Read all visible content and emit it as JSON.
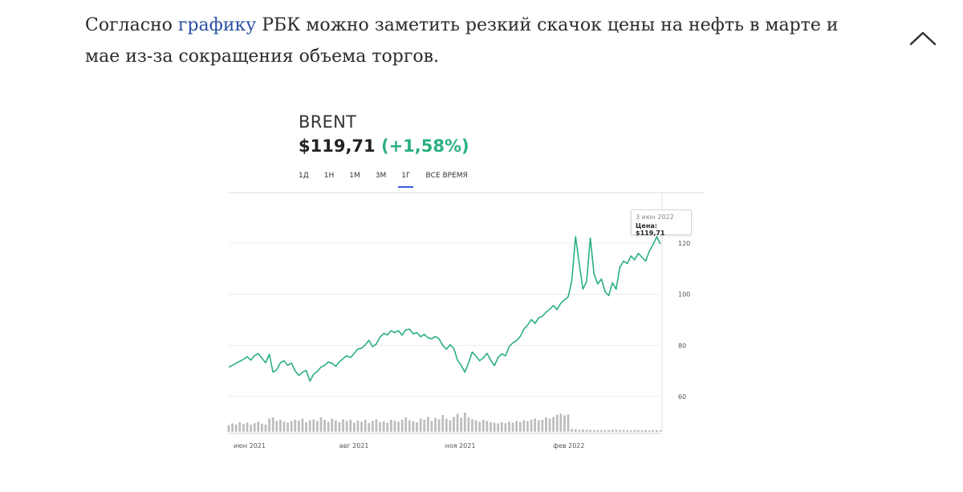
{
  "article": {
    "text_before_link": "Согласно ",
    "link_text": "графику",
    "text_after_link": " РБК можно заметить резкий скачок цены на нефть в марте и мае из-за сокращения объема торгов."
  },
  "collapse_icon": "chevron-up-icon",
  "widget": {
    "ticker": "BRENT",
    "price": "$119,71",
    "change": "(+1,58%)",
    "change_color": "#2bb07f",
    "periods": [
      "1Д",
      "1Н",
      "1М",
      "3М",
      "1Г",
      "ВСЕ ВРЕМЯ"
    ],
    "active_period": "1Г",
    "tooltip": {
      "date": "3 июн 2022",
      "label": "Цена:",
      "value": "$119,71"
    }
  },
  "chart_data": {
    "type": "line",
    "title": "",
    "xlabel": "",
    "ylabel": "",
    "line_color": "#2bb07f",
    "volume_color": "#bdbdbd",
    "ylim": [
      55,
      130
    ],
    "y_ticks": [
      60,
      80,
      100,
      120
    ],
    "x_ticks": [
      "июн 2021",
      "авг 2021",
      "ноя 2021",
      "фев 2022"
    ],
    "grid": true,
    "series": [
      {
        "values": [
          71.5,
          72.2,
          73.0,
          73.8,
          74.5,
          75.6,
          74.2,
          76.0,
          76.8,
          75.0,
          73.2,
          76.5,
          69.5,
          70.5,
          73.2,
          74.0,
          72.2,
          73.1,
          70.0,
          68.2,
          69.5,
          70.2,
          66.0,
          68.7,
          69.8,
          71.5,
          72.2,
          73.5,
          73.0,
          71.8,
          73.6,
          74.8,
          76.0,
          75.2,
          76.8,
          78.6,
          78.9,
          80.2,
          82.0,
          79.5,
          80.5,
          83.2,
          84.7,
          84.1,
          85.8,
          85.0,
          85.8,
          84.0,
          86.1,
          86.4,
          84.5,
          85.0,
          83.4,
          84.3,
          83.0,
          82.6,
          83.5,
          82.6,
          80.0,
          78.5,
          80.3,
          78.8,
          74.2,
          72.2,
          69.5,
          73.2,
          77.4,
          75.8,
          74.0,
          75.1,
          76.9,
          74.2,
          72.1,
          75.2,
          76.7,
          75.9,
          79.5,
          81.0,
          81.9,
          83.5,
          86.4,
          88.0,
          90.1,
          88.6,
          90.8,
          91.4,
          93.0,
          94.2,
          95.6,
          94.0,
          96.5,
          97.8,
          99.0,
          105.5,
          122.5,
          112.0,
          102.0,
          105.0,
          122.0,
          108.0,
          104.0,
          106.0,
          101.0,
          99.5,
          104.5,
          102.0,
          110.5,
          113.0,
          112.0,
          115.0,
          113.5,
          116.0,
          114.5,
          113.0,
          117.0,
          119.5,
          122.5,
          119.7
        ],
        "volume": [
          0.28,
          0.35,
          0.3,
          0.4,
          0.33,
          0.38,
          0.3,
          0.36,
          0.42,
          0.34,
          0.3,
          0.55,
          0.6,
          0.45,
          0.5,
          0.42,
          0.38,
          0.44,
          0.5,
          0.47,
          0.55,
          0.4,
          0.48,
          0.52,
          0.45,
          0.6,
          0.5,
          0.42,
          0.55,
          0.48,
          0.4,
          0.52,
          0.45,
          0.5,
          0.38,
          0.47,
          0.42,
          0.5,
          0.36,
          0.45,
          0.52,
          0.4,
          0.44,
          0.38,
          0.5,
          0.46,
          0.42,
          0.5,
          0.6,
          0.48,
          0.44,
          0.4,
          0.55,
          0.5,
          0.62,
          0.45,
          0.58,
          0.52,
          0.7,
          0.55,
          0.48,
          0.62,
          0.75,
          0.58,
          0.8,
          0.6,
          0.52,
          0.48,
          0.42,
          0.5,
          0.45,
          0.4,
          0.38,
          0.35,
          0.4,
          0.36,
          0.42,
          0.38,
          0.45,
          0.4,
          0.48,
          0.44,
          0.5,
          0.55,
          0.48,
          0.5,
          0.6,
          0.55,
          0.62,
          0.7,
          0.75,
          0.68,
          0.72,
          0.12,
          0.1,
          0.08,
          0.1,
          0.09,
          0.08,
          0.07,
          0.08,
          0.07,
          0.08,
          0.07,
          0.09,
          0.08,
          0.07,
          0.08,
          0.07,
          0.06,
          0.08,
          0.07,
          0.06,
          0.07,
          0.06,
          0.08,
          0.07,
          0.06
        ]
      }
    ]
  }
}
